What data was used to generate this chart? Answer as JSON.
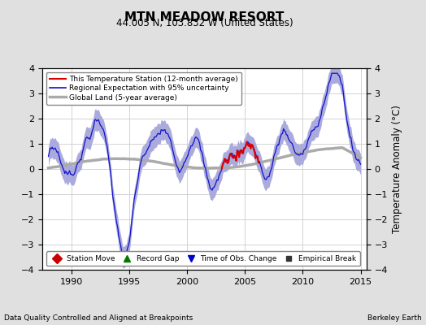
{
  "title": "MTN MEADOW RESORT",
  "subtitle": "44.005 N, 103.832 W (United States)",
  "ylabel": "Temperature Anomaly (°C)",
  "footer_left": "Data Quality Controlled and Aligned at Breakpoints",
  "footer_right": "Berkeley Earth",
  "xlim": [
    1987.5,
    2015.5
  ],
  "ylim": [
    -4,
    4
  ],
  "yticks": [
    -4,
    -3,
    -2,
    -1,
    0,
    1,
    2,
    3,
    4
  ],
  "xticks": [
    1990,
    1995,
    2000,
    2005,
    2010,
    2015
  ],
  "fig_bg": "#e0e0e0",
  "plot_bg": "#ffffff",
  "uncertainty_color": "#aaaadd",
  "blue_color": "#1111cc",
  "red_color": "#dd0000",
  "gray_color": "#aaaaaa",
  "grid_color": "#cccccc",
  "legend_top": [
    "This Temperature Station (12-month average)",
    "Regional Expectation with 95% uncertainty",
    "Global Land (5-year average)"
  ],
  "legend_bottom": [
    {
      "label": "Station Move",
      "marker": "D",
      "color": "#cc0000"
    },
    {
      "label": "Record Gap",
      "marker": "^",
      "color": "#007700"
    },
    {
      "label": "Time of Obs. Change",
      "marker": "v",
      "color": "#0000cc"
    },
    {
      "label": "Empirical Break",
      "marker": "s",
      "color": "#333333"
    }
  ]
}
